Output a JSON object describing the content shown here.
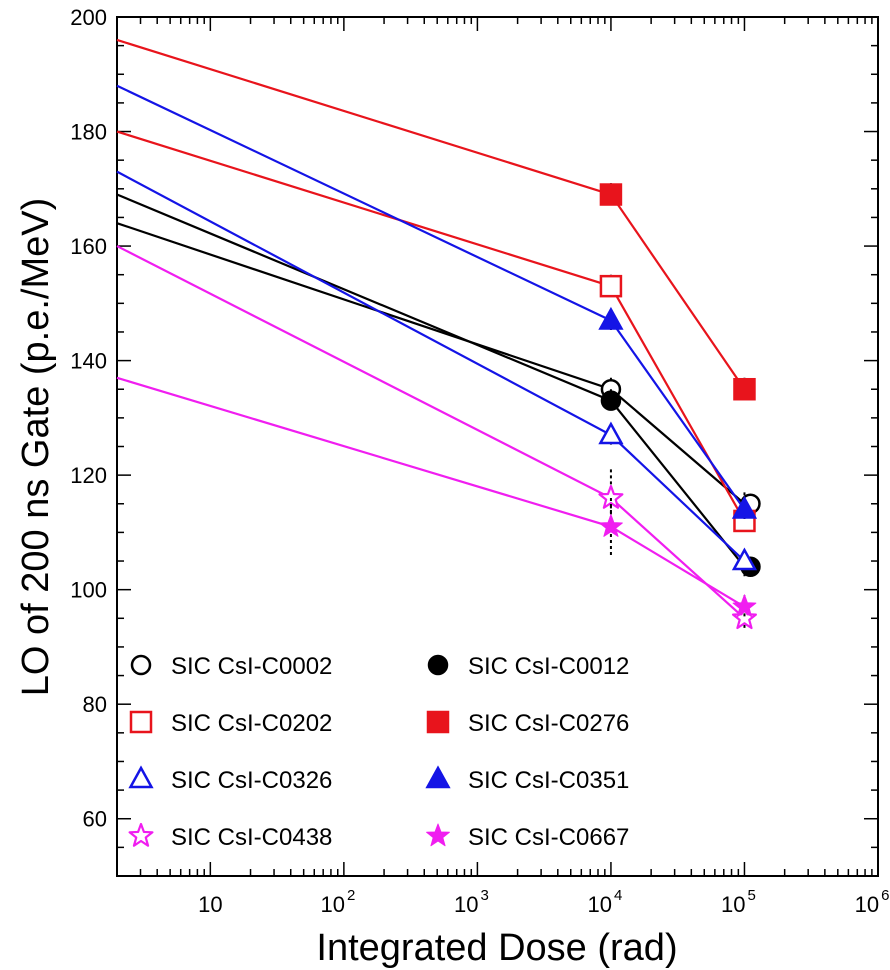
{
  "chart_data": {
    "type": "line",
    "title": "",
    "xlabel": "Integrated Dose (rad)",
    "ylabel": "LO of 200 ns Gate (p.e./MeV)",
    "xscale": "log",
    "xlim": [
      2,
      1000000
    ],
    "ylim": [
      50,
      200
    ],
    "grid": false,
    "legend_position": "bottom-left",
    "x_ticks": [
      {
        "value": 10,
        "base": "10",
        "exp": ""
      },
      {
        "value": 100,
        "base": "10",
        "exp": "2"
      },
      {
        "value": 1000,
        "base": "10",
        "exp": "3"
      },
      {
        "value": 10000,
        "base": "10",
        "exp": "4"
      },
      {
        "value": 100000,
        "base": "10",
        "exp": "5"
      },
      {
        "value": 1000000,
        "base": "10",
        "exp": "6"
      }
    ],
    "y_ticks": [
      60,
      80,
      100,
      120,
      140,
      160,
      180,
      200
    ],
    "series": [
      {
        "name": "SIC CsI-C0002",
        "color": "#000000",
        "marker": "circle",
        "filled": false,
        "x": [
          2,
          10000,
          100000
        ],
        "y": [
          164,
          135,
          115
        ],
        "err": [
          0,
          2,
          2
        ]
      },
      {
        "name": "SIC CsI-C0012",
        "color": "#000000",
        "marker": "circle",
        "filled": true,
        "x": [
          2,
          10000,
          100000
        ],
        "y": [
          169,
          133,
          104
        ],
        "err": [
          0,
          2,
          2
        ]
      },
      {
        "name": "SIC CsI-C0202",
        "color": "#e8141c",
        "marker": "square",
        "filled": false,
        "x": [
          2,
          10000,
          100000
        ],
        "y": [
          180,
          153,
          112
        ],
        "err": [
          0,
          2,
          2
        ]
      },
      {
        "name": "SIC CsI-C0276",
        "color": "#e8141c",
        "marker": "square",
        "filled": true,
        "x": [
          2,
          10000,
          100000
        ],
        "y": [
          196,
          169,
          135
        ],
        "err": [
          0,
          2,
          2
        ]
      },
      {
        "name": "SIC CsI-C0326",
        "color": "#1414e6",
        "marker": "triangle",
        "filled": false,
        "x": [
          2,
          10000,
          100000
        ],
        "y": [
          173,
          127,
          105
        ],
        "err": [
          0,
          2,
          2
        ]
      },
      {
        "name": "SIC CsI-C0351",
        "color": "#1414e6",
        "marker": "triangle",
        "filled": true,
        "x": [
          2,
          10000,
          100000
        ],
        "y": [
          188,
          147,
          114
        ],
        "err": [
          0,
          2,
          2
        ]
      },
      {
        "name": "SIC CsI-C0438",
        "color": "#f01ef0",
        "marker": "star",
        "filled": false,
        "x": [
          2,
          10000,
          100000
        ],
        "y": [
          160,
          116,
          95
        ],
        "err": [
          0,
          5,
          2
        ]
      },
      {
        "name": "SIC CsI-C0667",
        "color": "#f01ef0",
        "marker": "star",
        "filled": true,
        "x": [
          2,
          10000,
          100000
        ],
        "y": [
          137,
          111,
          97
        ],
        "err": [
          0,
          5,
          2
        ]
      }
    ],
    "legend_order": [
      0,
      1,
      2,
      3,
      4,
      5,
      6,
      7
    ]
  }
}
